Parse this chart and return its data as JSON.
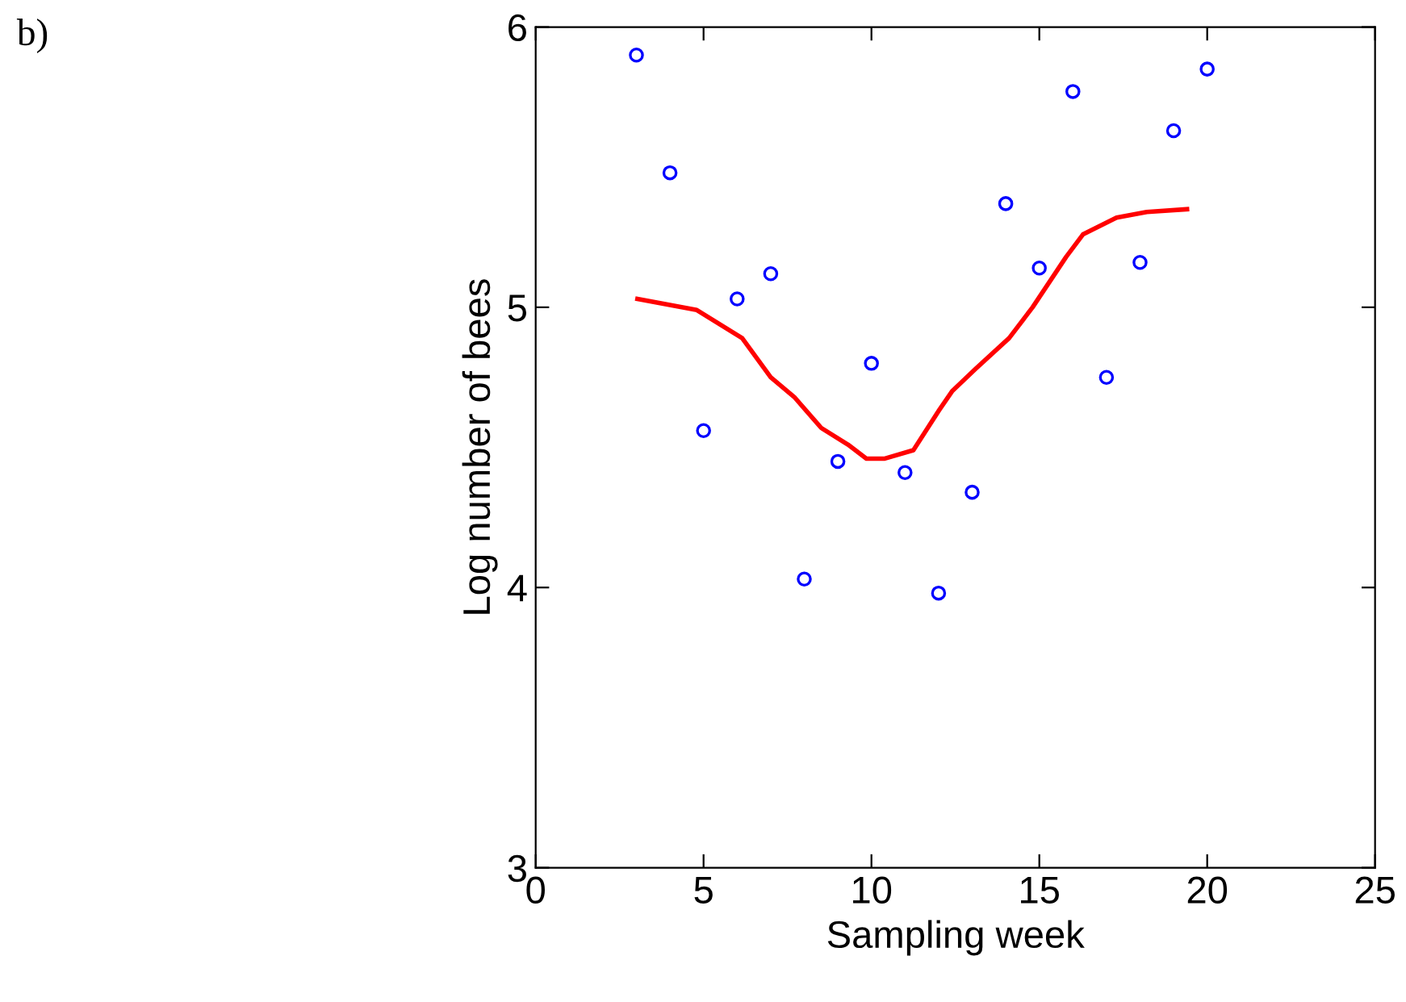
{
  "chart_data": {
    "type": "scatter",
    "xlabel": "Sampling week",
    "ylabel": "Log number of bees",
    "annotations": [
      "b)"
    ],
    "xlim": [
      0,
      25
    ],
    "ylim": [
      3,
      6
    ],
    "xticks": [
      0,
      5,
      10,
      15,
      20,
      25
    ],
    "yticks": [
      3,
      4,
      5,
      6
    ],
    "grid": false,
    "legend": false,
    "series": [
      {
        "color": "#0000ff",
        "marker": "circle",
        "x": [
          3,
          4,
          5,
          6,
          7,
          8,
          9,
          10,
          11,
          12,
          13,
          14,
          15,
          16,
          17,
          18,
          19,
          20
        ],
        "values": [
          5.9,
          5.48,
          4.56,
          5.03,
          5.12,
          4.03,
          4.45,
          4.8,
          4.41,
          3.98,
          4.34,
          5.37,
          5.14,
          5.77,
          4.75,
          5.16,
          5.63,
          5.85
        ]
      },
      {
        "type": "line",
        "color": "#ff0000",
        "marker": "none",
        "line_style": "solid",
        "x": [
          3.03,
          4.8,
          6.15,
          7,
          7.7,
          8.5,
          9.3,
          9.85,
          10.4,
          11.25,
          12,
          12.4,
          13.1,
          14.1,
          14.8,
          15.8,
          16.3,
          17.3,
          18.2,
          19.4
        ],
        "values": [
          5.03,
          4.99,
          4.89,
          4.75,
          4.68,
          4.57,
          4.51,
          4.46,
          4.46,
          4.49,
          4.63,
          4.7,
          4.78,
          4.89,
          5.0,
          5.18,
          5.26,
          5.32,
          5.34,
          5.35
        ]
      }
    ]
  }
}
